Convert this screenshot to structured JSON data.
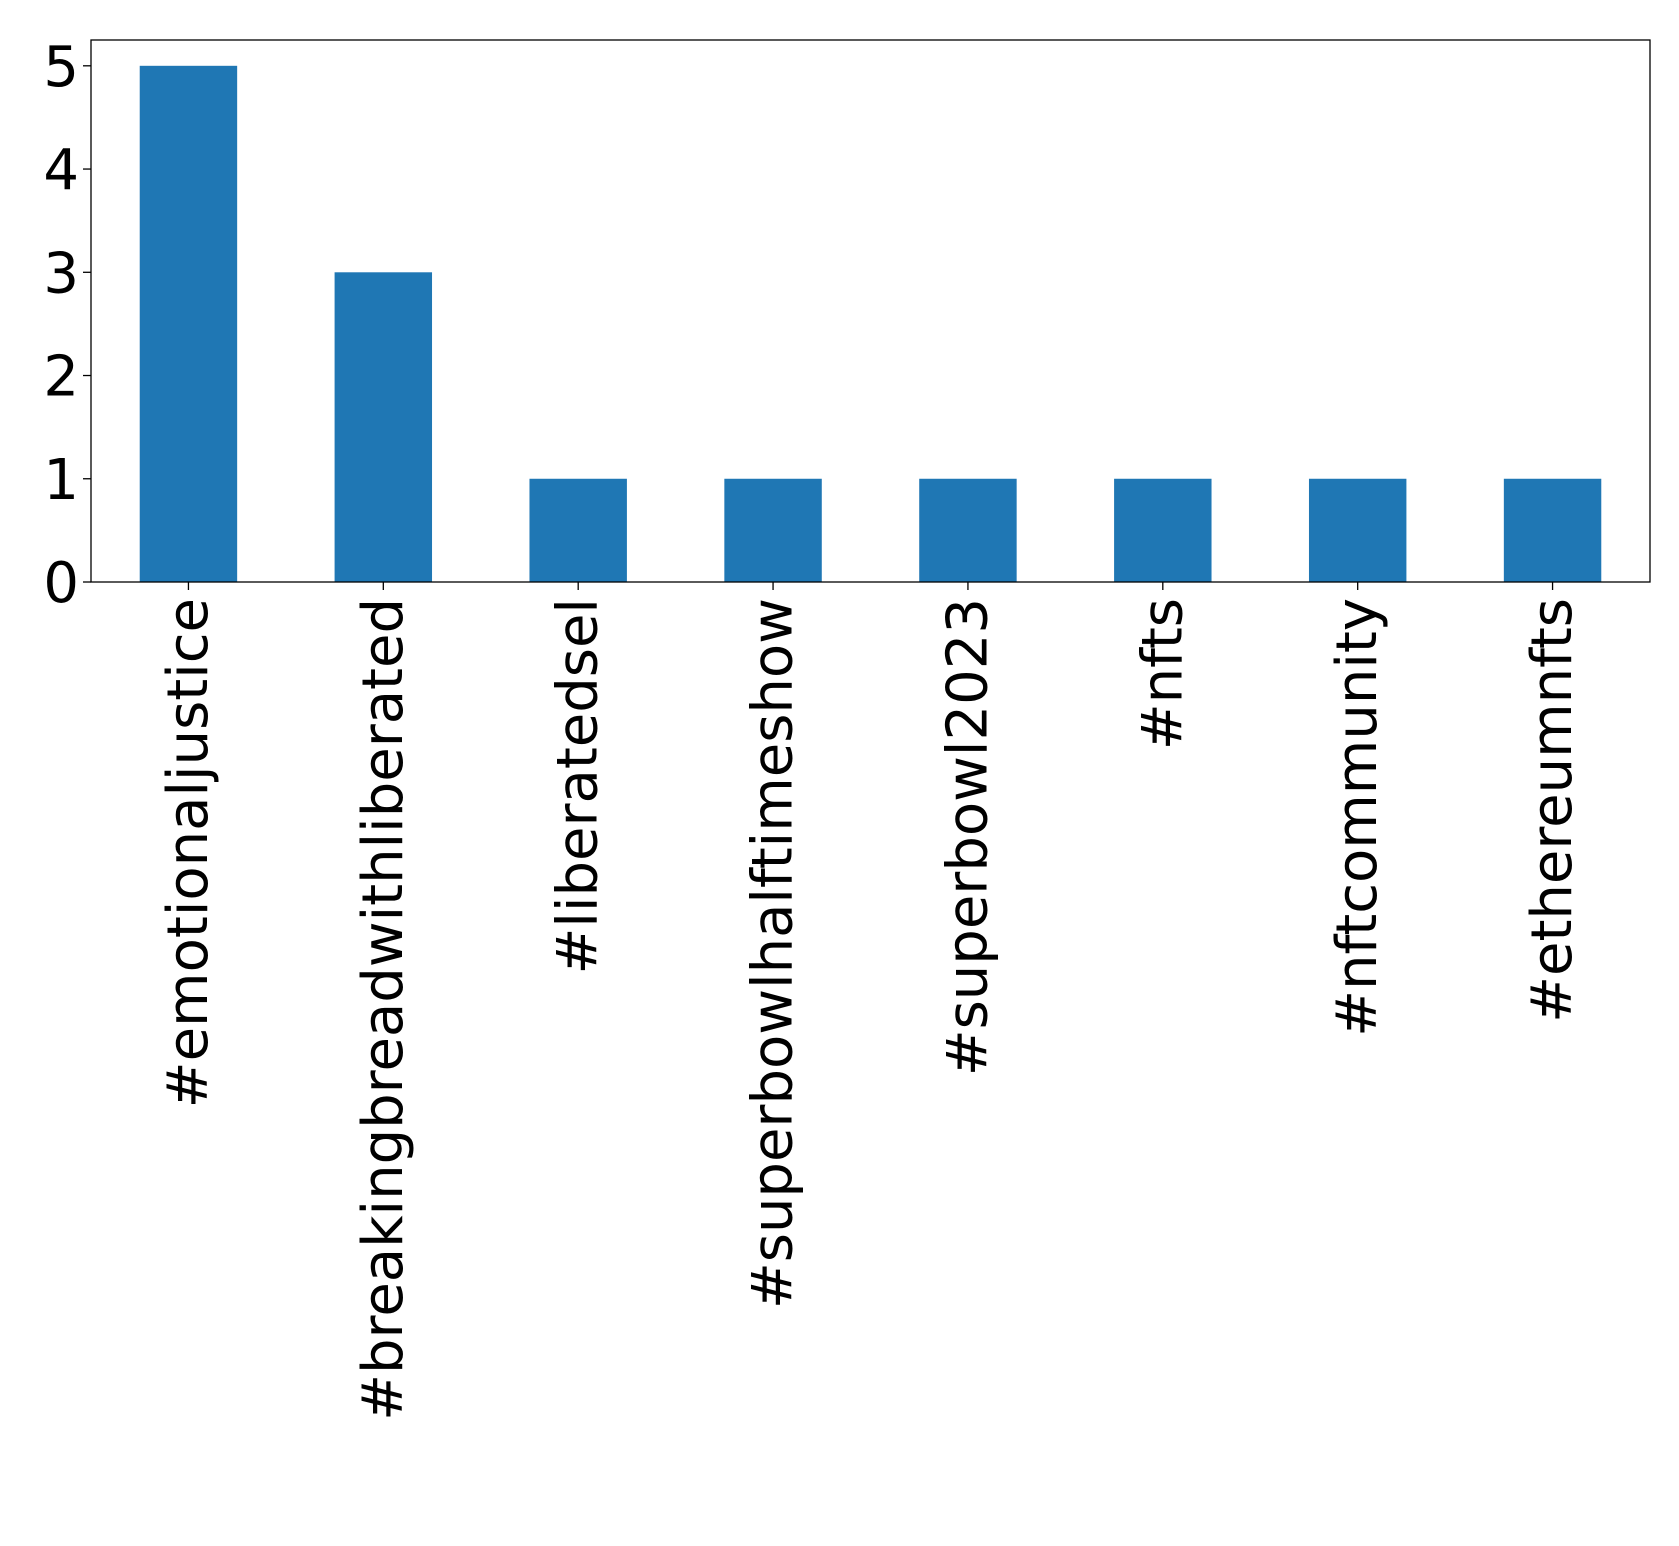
{
  "chart_data": {
    "type": "bar",
    "title": "",
    "xlabel": "",
    "ylabel": "",
    "categories": [
      "#emotionaljustice",
      "#breakingbreadwithliberated",
      "#liberatedsel",
      "#superbowlhalftimeshow",
      "#superbowl2023",
      "#nfts",
      "#nftcommunity",
      "#ethereumnfts"
    ],
    "values": [
      5,
      3,
      1,
      1,
      1,
      1,
      1,
      1
    ],
    "ylim": [
      0,
      5.25
    ],
    "yticks": [
      0,
      1,
      2,
      3,
      4,
      5
    ],
    "bar_color": "#1f77b4",
    "grid": false,
    "legend": "none"
  }
}
